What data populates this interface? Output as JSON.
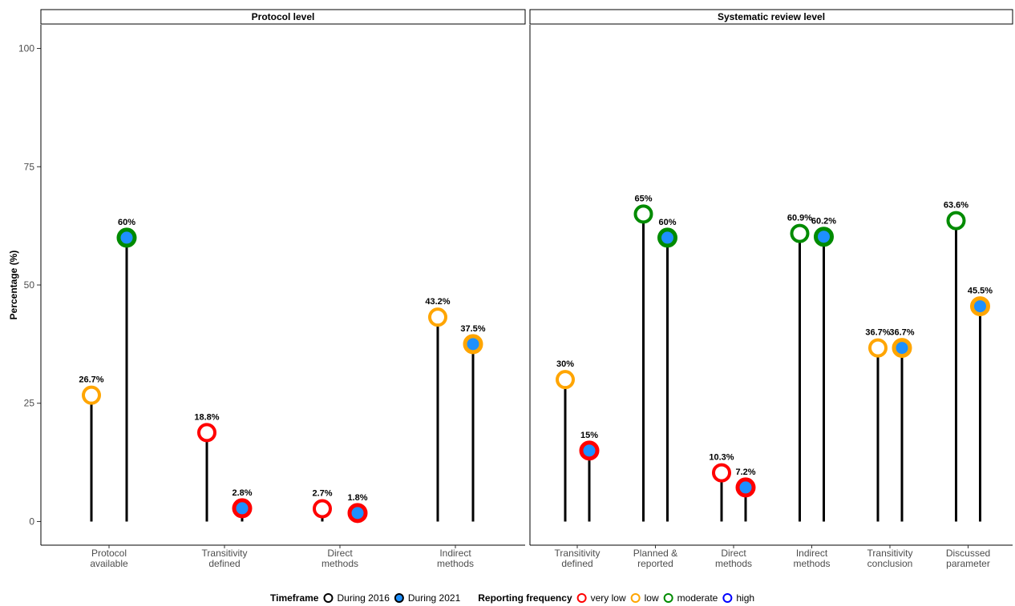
{
  "chart_data": {
    "type": "lollipop",
    "ylabel": "Percentage (%)",
    "xlabel": "",
    "ylim": [
      -5,
      105
    ],
    "yticks": [
      0,
      25,
      50,
      75,
      100
    ],
    "grid": false,
    "legend_position": "bottom",
    "colors": {
      "very low": "#ff0000",
      "low": "#ffa500",
      "moderate": "#008b00",
      "high": "#0000ff",
      "fill_2016": "#ffffff",
      "fill_2021": "#1e90ff",
      "stem": "#000000"
    },
    "panels": [
      {
        "title": "Protocol level",
        "categories": [
          "Protocol available",
          "Transitivity defined",
          "Direct methods",
          "Indirect methods"
        ],
        "category_lines": [
          [
            "Protocol",
            "available"
          ],
          [
            "Transitivity",
            "defined"
          ],
          [
            "Direct",
            "methods"
          ],
          [
            "Indirect",
            "methods"
          ]
        ],
        "series": [
          {
            "name": "During 2016",
            "values": [
              26.7,
              18.8,
              2.7,
              43.2
            ],
            "labels": [
              "26.7%",
              "18.8%",
              "2.7%",
              "43.2%"
            ],
            "frequency": [
              "low",
              "very low",
              "very low",
              "low"
            ]
          },
          {
            "name": "During 2021",
            "values": [
              60,
              2.8,
              1.8,
              37.5
            ],
            "labels": [
              "60%",
              "2.8%",
              "1.8%",
              "37.5%"
            ],
            "frequency": [
              "moderate",
              "very low",
              "very low",
              "low"
            ]
          }
        ]
      },
      {
        "title": "Systematic review level",
        "categories": [
          "Transitivity defined",
          "Planned & reported",
          "Direct methods",
          "Indirect methods",
          "Transitivity conclusion",
          "Discussed parameter"
        ],
        "category_lines": [
          [
            "Transitivity",
            "defined"
          ],
          [
            "Planned &",
            "reported"
          ],
          [
            "Direct",
            "methods"
          ],
          [
            "Indirect",
            "methods"
          ],
          [
            "Transitivity",
            "conclusion"
          ],
          [
            "Discussed",
            "parameter"
          ]
        ],
        "series": [
          {
            "name": "During 2016",
            "values": [
              30,
              65,
              10.3,
              60.9,
              36.7,
              63.6
            ],
            "labels": [
              "30%",
              "65%",
              "10.3%",
              "60.9%",
              "36.7%",
              "63.6%"
            ],
            "frequency": [
              "low",
              "moderate",
              "very low",
              "moderate",
              "low",
              "moderate"
            ]
          },
          {
            "name": "During 2021",
            "values": [
              15,
              60,
              7.2,
              60.2,
              36.7,
              45.5
            ],
            "labels": [
              "15%",
              "60%",
              "7.2%",
              "60.2%",
              "36.7%",
              "45.5%"
            ],
            "frequency": [
              "very low",
              "moderate",
              "very low",
              "moderate",
              "low",
              "low"
            ]
          }
        ]
      }
    ],
    "legend": {
      "timeframe_title": "Timeframe",
      "timeframe_items": [
        "During 2016",
        "During 2021"
      ],
      "frequency_title": "Reporting frequency",
      "frequency_items": [
        "very low",
        "low",
        "moderate",
        "high"
      ]
    }
  }
}
